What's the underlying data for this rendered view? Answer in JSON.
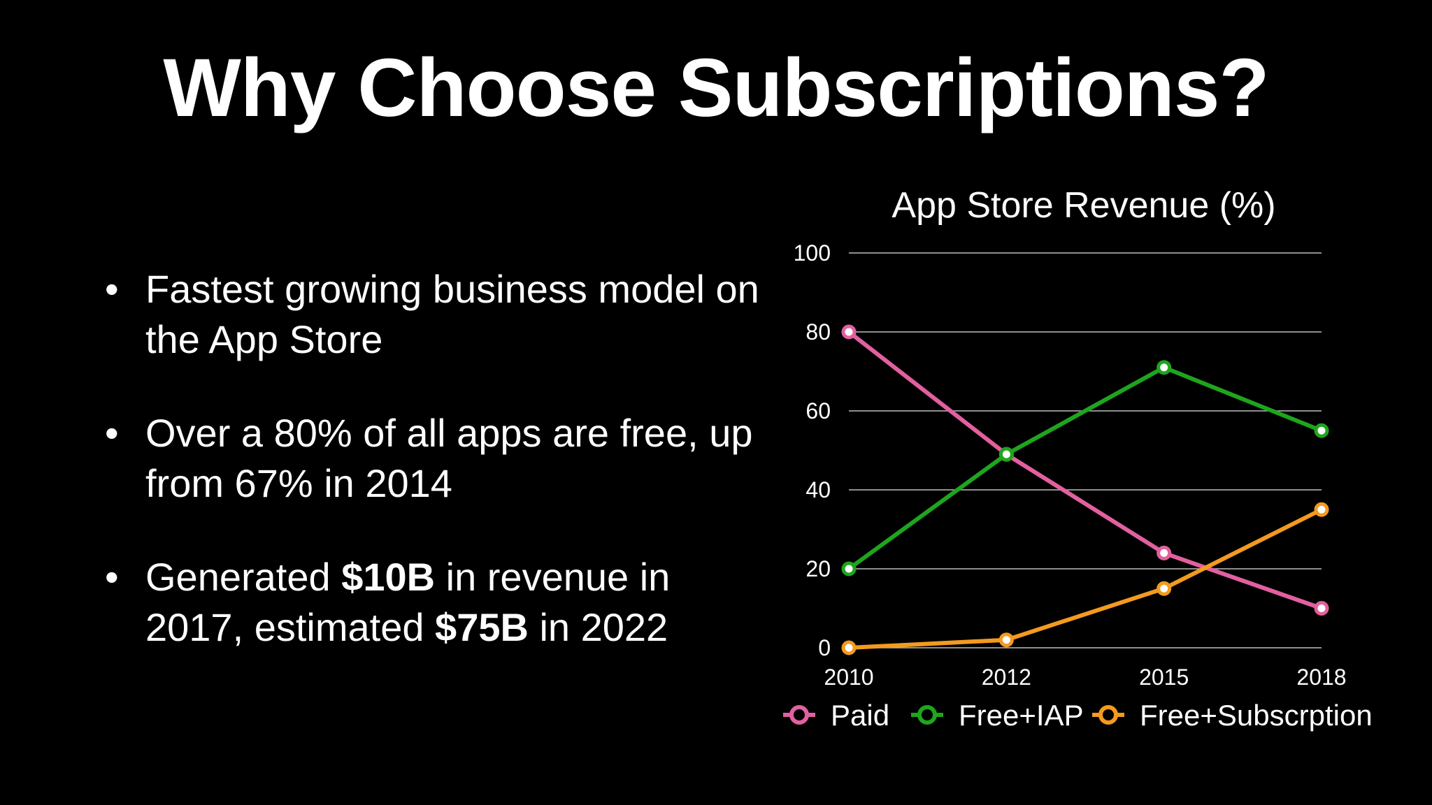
{
  "slide": {
    "title": "Why Choose Subscriptions?",
    "bullets": [
      {
        "segments": [
          {
            "text": "Fastest growing business model on the App Store",
            "bold": false
          }
        ]
      },
      {
        "segments": [
          {
            "text": "Over a 80% of all apps are free, up from 67% in 2014",
            "bold": false
          }
        ]
      },
      {
        "segments": [
          {
            "text": "Generated ",
            "bold": false
          },
          {
            "text": "$10B",
            "bold": true
          },
          {
            "text": " in revenue in 2017, estimated ",
            "bold": false
          },
          {
            "text": "$75B",
            "bold": true
          },
          {
            "text": " in 2022",
            "bold": false
          }
        ]
      }
    ]
  },
  "chart_data": {
    "type": "line",
    "title": "App Store Revenue (%)",
    "xlabel": "",
    "ylabel": "",
    "categories": [
      "2010",
      "2012",
      "2015",
      "2018"
    ],
    "ylim": [
      0,
      100
    ],
    "yticks": [
      0,
      20,
      40,
      60,
      80,
      100
    ],
    "grid": true,
    "legend_position": "bottom",
    "series": [
      {
        "name": "Paid",
        "color": "#e2609f",
        "values": [
          80,
          49,
          24,
          10
        ]
      },
      {
        "name": "Free+IAP",
        "color": "#1ea51e",
        "values": [
          20,
          49,
          71,
          55
        ]
      },
      {
        "name": "Free+Subscrption",
        "color": "#f39a1f",
        "values": [
          0,
          2,
          15,
          35
        ]
      }
    ]
  }
}
